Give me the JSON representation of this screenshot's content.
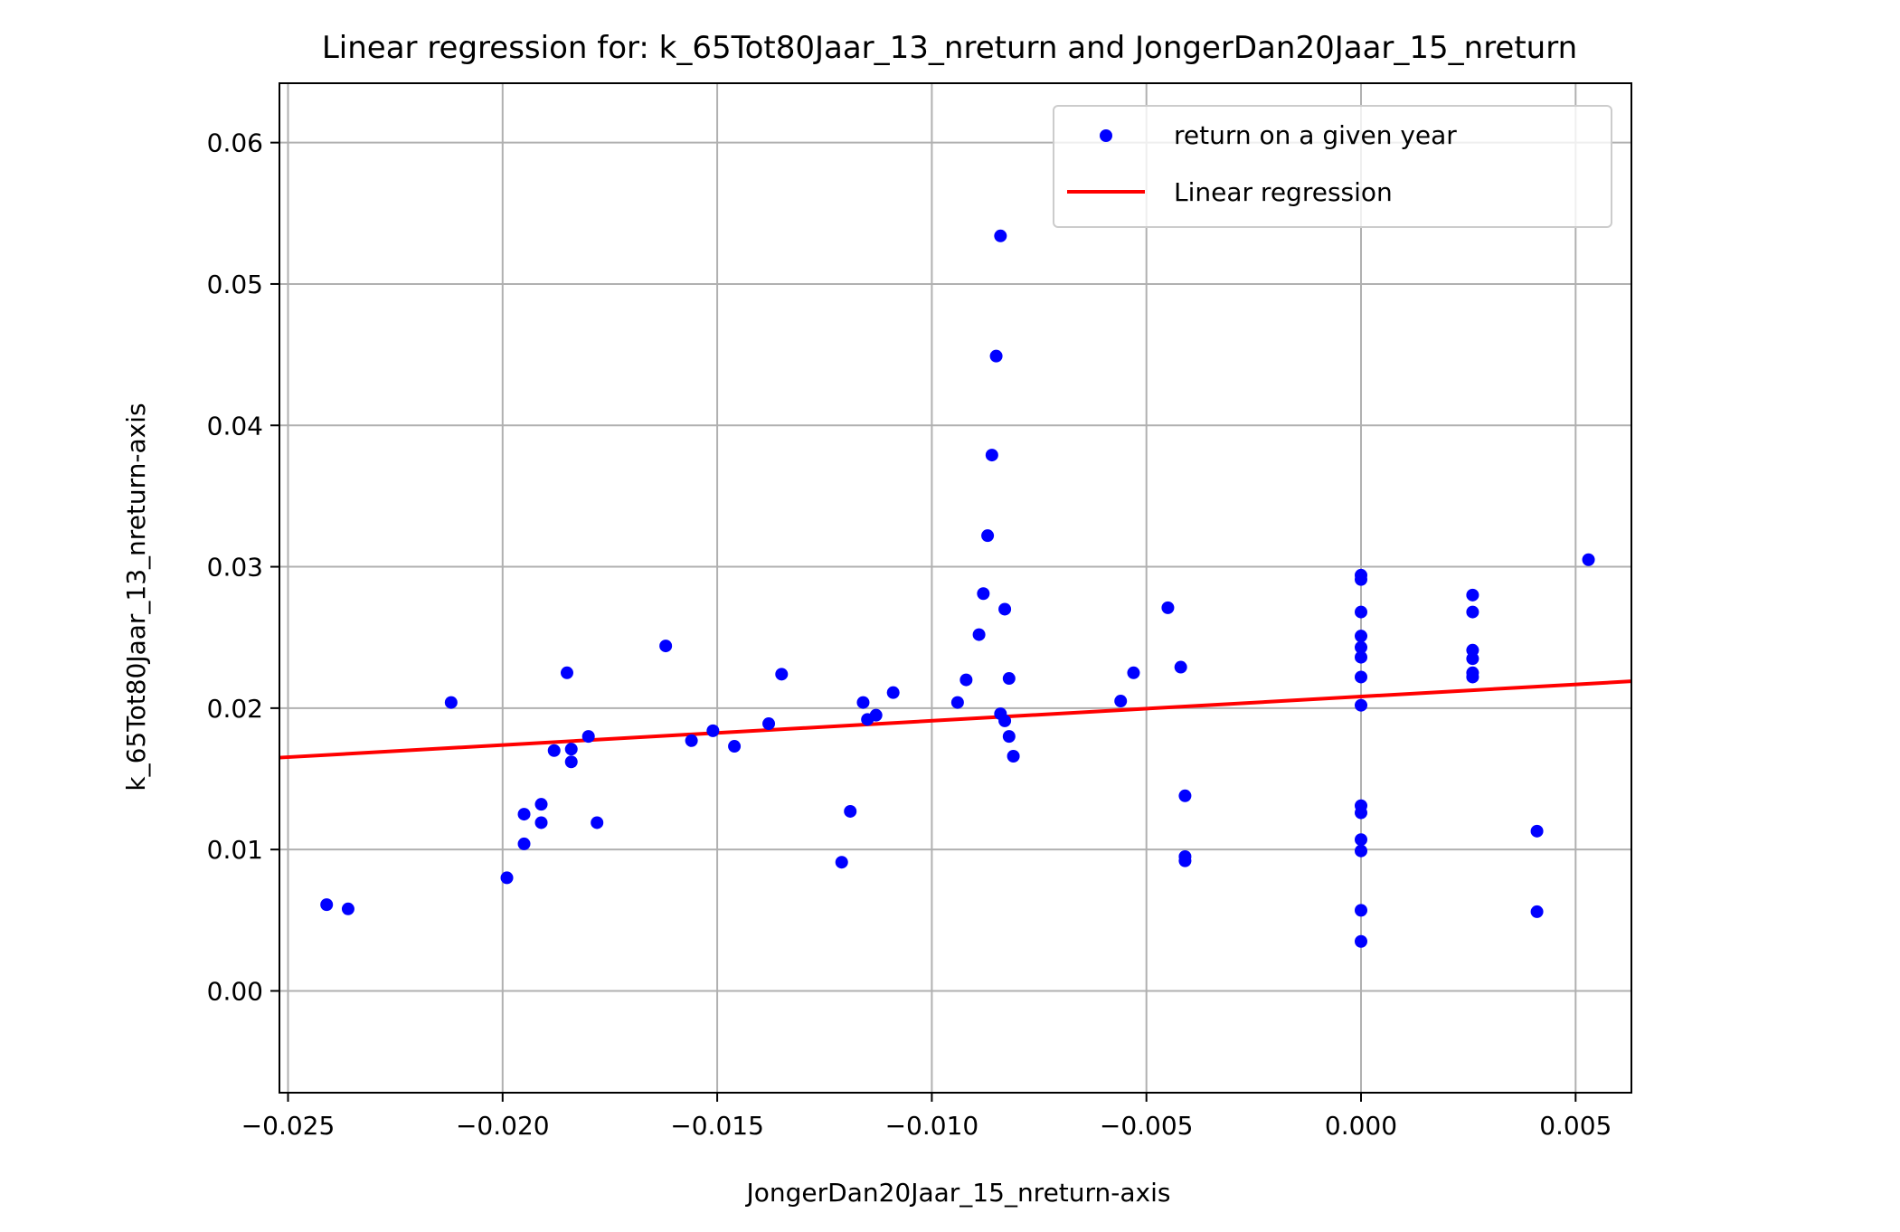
{
  "chart_data": {
    "type": "scatter",
    "title": "Linear regression for: k_65Tot80Jaar_13_nreturn and JongerDan20Jaar_15_nreturn",
    "xlabel": "JongerDan20Jaar_15_nreturn-axis",
    "ylabel": "k_65Tot80Jaar_13_nreturn-axis",
    "xlim": [
      -0.0252,
      0.0063
    ],
    "ylim": [
      -0.0072,
      0.0642
    ],
    "xticks": [
      -0.025,
      -0.02,
      -0.015,
      -0.01,
      -0.005,
      0.0,
      0.005
    ],
    "xtick_labels": [
      "−0.025",
      "−0.020",
      "−0.015",
      "−0.010",
      "−0.005",
      "0.000",
      "0.005"
    ],
    "yticks": [
      0.0,
      0.01,
      0.02,
      0.03,
      0.04,
      0.05,
      0.06
    ],
    "ytick_labels": [
      "0.00",
      "0.01",
      "0.02",
      "0.03",
      "0.04",
      "0.05",
      "0.06"
    ],
    "grid": true,
    "legend_position": "top-right",
    "series": [
      {
        "name": "return on a given year",
        "kind": "scatter",
        "color": "#0000ff",
        "points": [
          [
            -0.0241,
            0.0061
          ],
          [
            -0.0236,
            0.0058
          ],
          [
            -0.0212,
            0.0204
          ],
          [
            -0.0199,
            0.008
          ],
          [
            -0.0195,
            0.0125
          ],
          [
            -0.0195,
            0.0104
          ],
          [
            -0.0191,
            0.0132
          ],
          [
            -0.0191,
            0.0119
          ],
          [
            -0.0188,
            0.017
          ],
          [
            -0.0185,
            0.0225
          ],
          [
            -0.0184,
            0.0171
          ],
          [
            -0.0184,
            0.0162
          ],
          [
            -0.018,
            0.018
          ],
          [
            -0.0178,
            0.0119
          ],
          [
            -0.0162,
            0.0244
          ],
          [
            -0.0156,
            0.0177
          ],
          [
            -0.0151,
            0.0184
          ],
          [
            -0.0146,
            0.0173
          ],
          [
            -0.0138,
            0.0189
          ],
          [
            -0.0135,
            0.0224
          ],
          [
            -0.0121,
            0.0091
          ],
          [
            -0.0119,
            0.0127
          ],
          [
            -0.0116,
            0.0204
          ],
          [
            -0.0115,
            0.0192
          ],
          [
            -0.0113,
            0.0195
          ],
          [
            -0.0109,
            0.0211
          ],
          [
            -0.0094,
            0.0204
          ],
          [
            -0.0092,
            0.022
          ],
          [
            -0.0089,
            0.0252
          ],
          [
            -0.0088,
            0.0281
          ],
          [
            -0.0087,
            0.0322
          ],
          [
            -0.0086,
            0.0379
          ],
          [
            -0.0085,
            0.0449
          ],
          [
            -0.0084,
            0.0534
          ],
          [
            -0.0084,
            0.0196
          ],
          [
            -0.0083,
            0.0191
          ],
          [
            -0.0083,
            0.027
          ],
          [
            -0.0082,
            0.0221
          ],
          [
            -0.0082,
            0.018
          ],
          [
            -0.0081,
            0.0166
          ],
          [
            -0.0056,
            0.0205
          ],
          [
            -0.0053,
            0.0225
          ],
          [
            -0.0045,
            0.0271
          ],
          [
            -0.0042,
            0.0229
          ],
          [
            -0.0041,
            0.0138
          ],
          [
            -0.0041,
            0.0095
          ],
          [
            -0.0041,
            0.0092
          ],
          [
            0.0,
            0.0294
          ],
          [
            0.0,
            0.0291
          ],
          [
            0.0,
            0.0268
          ],
          [
            0.0,
            0.0251
          ],
          [
            0.0,
            0.0243
          ],
          [
            0.0,
            0.0236
          ],
          [
            0.0,
            0.0222
          ],
          [
            0.0,
            0.0202
          ],
          [
            0.0,
            0.0131
          ],
          [
            0.0,
            0.0126
          ],
          [
            0.0,
            0.0107
          ],
          [
            0.0,
            0.0099
          ],
          [
            0.0,
            0.0057
          ],
          [
            0.0,
            0.0035
          ],
          [
            0.0026,
            0.028
          ],
          [
            0.0026,
            0.0268
          ],
          [
            0.0026,
            0.0241
          ],
          [
            0.0026,
            0.0235
          ],
          [
            0.0026,
            0.0225
          ],
          [
            0.0026,
            0.0222
          ],
          [
            0.0041,
            0.0113
          ],
          [
            0.0041,
            0.0056
          ],
          [
            0.0053,
            0.0305
          ]
        ]
      },
      {
        "name": "Linear regression",
        "kind": "line",
        "color": "#ff0000",
        "points": [
          [
            -0.0252,
            0.0165
          ],
          [
            0.0063,
            0.0219
          ]
        ]
      }
    ]
  }
}
